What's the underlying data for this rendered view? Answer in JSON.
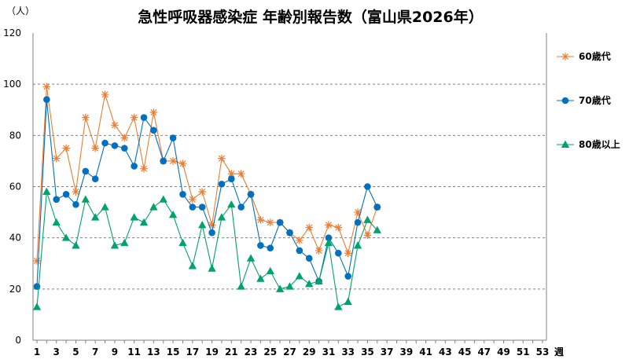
{
  "chart_data": {
    "type": "line",
    "title": "急性呼吸器感染症 年齢別報告数（富山県2026年）",
    "ylabel": "（人）",
    "xlabel": "週",
    "ylim": [
      0,
      120
    ],
    "yticks": [
      0,
      20,
      40,
      60,
      80,
      100,
      120
    ],
    "xlim": [
      1,
      53
    ],
    "xticks": [
      1,
      3,
      5,
      7,
      9,
      11,
      13,
      15,
      17,
      19,
      21,
      23,
      25,
      27,
      29,
      31,
      33,
      35,
      37,
      39,
      41,
      43,
      45,
      47,
      49,
      51,
      53
    ],
    "grid": "horizontal-dashed",
    "legend_position": "right",
    "series": [
      {
        "name": "60歳代",
        "color": "#ED7D31",
        "marker": "asterisk",
        "values": [
          31,
          99,
          71,
          75,
          58,
          87,
          75,
          96,
          84,
          79,
          87,
          67,
          89,
          70,
          70,
          69,
          55,
          58,
          45,
          71,
          65,
          65,
          57,
          47,
          46,
          46,
          42,
          39,
          44,
          35,
          45,
          44,
          34,
          50,
          41,
          52
        ]
      },
      {
        "name": "70歳代",
        "color": "#0070C0",
        "marker": "circle",
        "values": [
          21,
          94,
          55,
          57,
          53,
          66,
          63,
          77,
          76,
          75,
          68,
          87,
          82,
          70,
          79,
          57,
          52,
          52,
          42,
          61,
          63,
          52,
          57,
          37,
          36,
          46,
          42,
          35,
          32,
          23,
          40,
          34,
          25,
          46,
          60,
          52
        ]
      },
      {
        "name": "80歳以上",
        "color": "#00A36C",
        "marker": "triangle",
        "values": [
          13,
          58,
          46,
          40,
          37,
          55,
          48,
          52,
          37,
          38,
          48,
          46,
          52,
          55,
          49,
          38,
          29,
          45,
          28,
          48,
          53,
          21,
          32,
          24,
          27,
          20,
          21,
          25,
          22,
          23,
          38,
          13,
          15,
          37,
          47,
          43
        ]
      }
    ]
  }
}
